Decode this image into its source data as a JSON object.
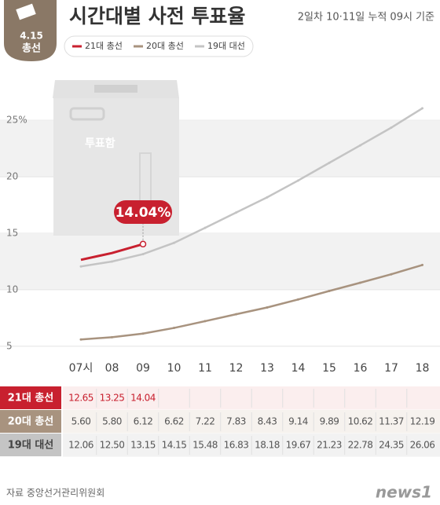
{
  "badge": {
    "date": "4.15",
    "label": "총선"
  },
  "chart_data": {
    "type": "line",
    "title": "시간대별 사전 투표율",
    "subtitle": "2일차 10·11일 누적 09시 기준",
    "categories": [
      "07시",
      "08",
      "09",
      "10",
      "11",
      "12",
      "13",
      "14",
      "15",
      "16",
      "17",
      "18"
    ],
    "series": [
      {
        "name": "21대 총선",
        "color": "#c8202f",
        "values": [
          12.65,
          13.25,
          14.04,
          null,
          null,
          null,
          null,
          null,
          null,
          null,
          null,
          null
        ],
        "value_labels": [
          "12.65",
          "13.25",
          "14.04",
          null,
          null,
          null,
          null,
          null,
          null,
          null,
          null,
          null
        ]
      },
      {
        "name": "20대 총선",
        "color": "#a8937f",
        "values": [
          5.6,
          5.8,
          6.12,
          6.62,
          7.22,
          7.83,
          8.43,
          9.14,
          9.89,
          10.62,
          11.37,
          12.19
        ],
        "value_labels": [
          "5.60",
          "5.80",
          "6.12",
          "6.62",
          "7.22",
          "7.83",
          "8.43",
          "9.14",
          "9.89",
          "10.62",
          "11.37",
          "12.19"
        ]
      },
      {
        "name": "19대 대선",
        "color": "#c4c4c4",
        "values": [
          12.06,
          12.5,
          13.15,
          14.15,
          15.48,
          16.83,
          18.18,
          19.67,
          21.23,
          22.78,
          24.35,
          26.06
        ],
        "value_labels": [
          "12.06",
          "12.50",
          "13.15",
          "14.15",
          "15.48",
          "16.83",
          "18.18",
          "19.67",
          "21.23",
          "22.78",
          "24.35",
          "26.06"
        ]
      }
    ],
    "annotation": "14.04%",
    "ylim": [
      2,
      28
    ],
    "yticks": [
      {
        "value": 25,
        "label": "25%"
      },
      20,
      15,
      10,
      5
    ],
    "grid": true,
    "box_label": "투표함",
    "source": "자료 중앙선거관리위원회"
  },
  "logo": "news1"
}
